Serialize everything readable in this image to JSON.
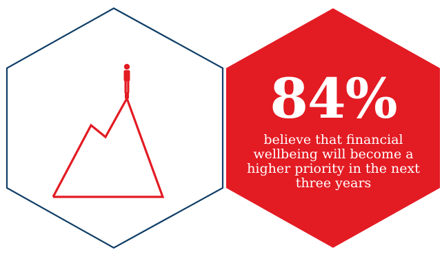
{
  "colors": {
    "outline": "#0f3d66",
    "accent": "#e31b23",
    "text_on_accent": "#ffffff",
    "background": "#ffffff"
  },
  "illustration": {
    "icon": "person-on-mountain-peak-icon"
  },
  "stat": {
    "value": "84%",
    "caption": "believe that financial wellbeing will become a higher priority in the next three years"
  }
}
